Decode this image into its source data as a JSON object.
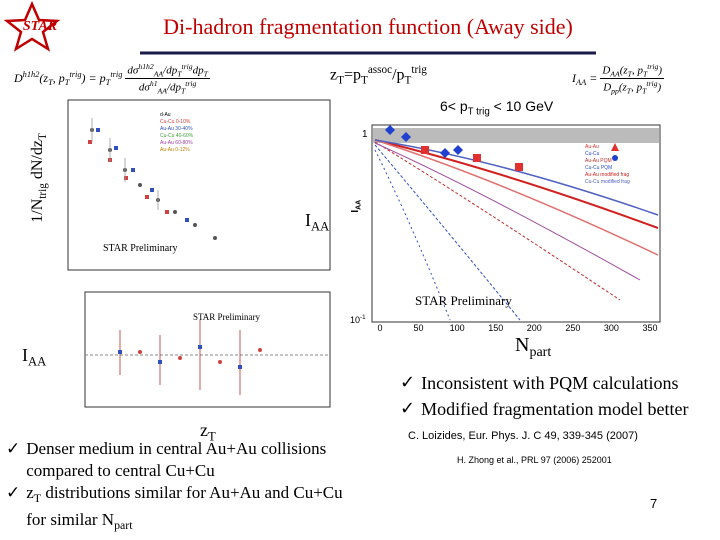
{
  "logo": "STAR",
  "title": "Di-hadron fragmentation function (Away side)",
  "zt_definition": [
    {
      "t": "z"
    },
    {
      "t": "T",
      "s": "sub"
    },
    {
      "t": "=p"
    },
    {
      "t": "T",
      "s": "sub"
    },
    {
      "t": "assoc",
      "s": "sup"
    },
    {
      "t": "/p"
    },
    {
      "t": "T",
      "s": "sub"
    },
    {
      "t": "trig",
      "s": "sup"
    }
  ],
  "formula_left": {
    "lhs": [
      {
        "t": "D"
      },
      {
        "t": "h1h2",
        "s": "sup"
      },
      {
        "t": "(z"
      },
      {
        "t": "T",
        "s": "sub"
      },
      {
        "t": ", p"
      },
      {
        "t": "T",
        "s": "sub"
      },
      {
        "t": "trig",
        "s": "sup"
      },
      {
        "t": ") = p"
      },
      {
        "t": "T",
        "s": "sub"
      },
      {
        "t": "trig",
        "s": "sup"
      }
    ],
    "numerator": [
      {
        "t": "dσ"
      },
      {
        "t": "h1h2",
        "s": "sup"
      },
      {
        "t": "AA",
        "s": "sub"
      },
      {
        "t": "/dp"
      },
      {
        "t": "T",
        "s": "sub"
      },
      {
        "t": "trig",
        "s": "sup"
      },
      {
        "t": "dp"
      },
      {
        "t": "T",
        "s": "sub"
      }
    ],
    "denominator": [
      {
        "t": "dσ"
      },
      {
        "t": "h1",
        "s": "sup"
      },
      {
        "t": "AA",
        "s": "sub"
      },
      {
        "t": "/dp"
      },
      {
        "t": "T",
        "s": "sub"
      },
      {
        "t": "trig",
        "s": "sup"
      }
    ]
  },
  "formula_right": {
    "lhs": [
      {
        "t": "I"
      },
      {
        "t": "AA",
        "s": "sub"
      },
      {
        "t": " ="
      }
    ],
    "numerator": [
      {
        "t": "D"
      },
      {
        "t": "AA",
        "s": "sub"
      },
      {
        "t": "(z"
      },
      {
        "t": "T",
        "s": "sub"
      },
      {
        "t": ", p"
      },
      {
        "t": "T",
        "s": "sub"
      },
      {
        "t": "trig",
        "s": "sup"
      },
      {
        "t": ")"
      }
    ],
    "denominator": [
      {
        "t": "D"
      },
      {
        "t": "pp",
        "s": "sub"
      },
      {
        "t": "(z"
      },
      {
        "t": "T",
        "s": "sub"
      },
      {
        "t": ", p"
      },
      {
        "t": "T",
        "s": "sub"
      },
      {
        "t": "trig",
        "s": "sup"
      },
      {
        "t": ")"
      }
    ]
  },
  "pt_range": [
    {
      "t": "6< p"
    },
    {
      "t": "T trig",
      "s": "sub"
    },
    {
      "t": " < 10 GeV"
    }
  ],
  "y_label": [
    {
      "t": "1/N"
    },
    {
      "t": "trig",
      "s": "sub"
    },
    {
      "t": " dN/dz"
    },
    {
      "t": "T",
      "s": "sub"
    }
  ],
  "iaa_mid": [
    {
      "t": "I"
    },
    {
      "t": "AA",
      "s": "sub"
    }
  ],
  "iaa_left": [
    {
      "t": "I"
    },
    {
      "t": "AA",
      "s": "sub"
    }
  ],
  "zt_label": [
    {
      "t": "z"
    },
    {
      "t": "T",
      "s": "sub"
    }
  ],
  "npart_label": [
    {
      "t": "N"
    },
    {
      "t": "part",
      "s": "sub"
    }
  ],
  "preliminary": [
    "STAR Preliminary",
    "STAR Preliminary",
    "STAR Preliminary"
  ],
  "top_left_legend": [
    "d-Au",
    "Cu-Cu 0-10%",
    "Au-Au 30-40%",
    "Cu-Cu 40-60%",
    "Au-Au 60-80%",
    "Au-Au 0-12%"
  ],
  "right_legend": [
    "Au-Au",
    "Cu-Cu",
    "Au-Au PQM",
    "Cu-Cu PQM",
    "Au-Au modified frag",
    "Cu-Cu modified frag"
  ],
  "right_xticks": [
    "0",
    "50",
    "100",
    "150",
    "200",
    "250",
    "300",
    "350"
  ],
  "right_ytick_top": "1",
  "right_ytick_bottom": [
    {
      "t": "10"
    },
    {
      "t": "-1",
      "s": "sup"
    }
  ],
  "right_y_axis": [
    {
      "t": "I"
    },
    {
      "t": "AA",
      "s": "sub"
    }
  ],
  "right_bullets": [
    "Inconsistent with PQM calculations",
    "Modified fragmentation model better"
  ],
  "references": [
    "C. Loizides, Eur. Phys. J. C 49, 339-345 (2007)",
    "H. Zhong et al., PRL 97 (2006) 252001"
  ],
  "left_bullets": [
    [
      {
        "t": "Denser medium in central Au+Au collisions compared to central Cu+Cu"
      }
    ],
    [
      {
        "t": "z"
      },
      {
        "t": "T",
        "s": "sub"
      },
      {
        "t": " distributions similar for Au+Au and Cu+Cu for similar N"
      },
      {
        "t": "part",
        "s": "sub"
      }
    ]
  ],
  "page_number": "7"
}
